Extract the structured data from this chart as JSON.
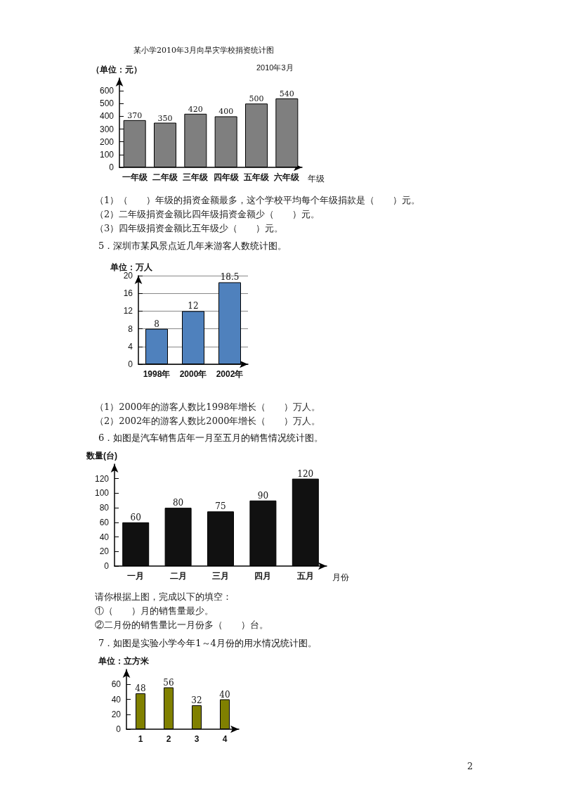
{
  "chart_data": [
    {
      "type": "bar",
      "title": "某小学2010年3月向旱灾学校捐资统计图",
      "subtitle": "2010年3月",
      "ylabel": "（单位：元）",
      "xlabel": "年级",
      "categories": [
        "一年级",
        "二年级",
        "三年级",
        "四年级",
        "五年级",
        "六年级"
      ],
      "values": [
        370,
        350,
        420,
        400,
        500,
        540
      ],
      "color": "#7f7f7f",
      "ylim": [
        0,
        700
      ],
      "yticks": [
        0,
        100,
        200,
        300,
        400,
        500,
        600
      ],
      "grid": false,
      "data_labels": true,
      "annotations": [
        "（1）（　　）年级的捐资金额最多，这个学校平均每个年级捐款是（　　）元。",
        "（2）二年级捐资金额比四年级捐资金额少（　　）元。",
        "（3）四年级捐资金额比五年级少（　　）元。"
      ]
    },
    {
      "type": "bar",
      "title": "5．深圳市某风景点近几年来游客人数统计图。",
      "ylabel": "单位：万人",
      "categories": [
        "1998年",
        "2000年",
        "2002年"
      ],
      "values": [
        8,
        12,
        18.5
      ],
      "color": "#4f81bd",
      "ylim": [
        0,
        20
      ],
      "yticks": [
        0,
        4,
        8,
        12,
        16,
        20
      ],
      "grid": "y",
      "data_labels": true,
      "annotations": [
        "（1）2000年的游客人数比1998年增长（　　）万人。",
        "（2）2002年的游客人数比2000年增长（　　）万人。"
      ]
    },
    {
      "type": "bar",
      "title": "6．如图是汽车销售店年一月至五月的销售情况统计图。",
      "ylabel": "数量(台)",
      "xlabel": "月份",
      "categories": [
        "一月",
        "二月",
        "三月",
        "四月",
        "五月"
      ],
      "values": [
        60,
        80,
        75,
        90,
        120
      ],
      "color": "#111111",
      "ylim": [
        0,
        140
      ],
      "yticks": [
        0,
        20,
        40,
        60,
        80,
        100,
        120
      ],
      "grid": false,
      "data_labels": true,
      "annotations": [
        "请你根据上图，完成以下的填空：",
        "①（　　）月的销售量最少。",
        "②二月份的销售量比一月份多（　　）台。"
      ]
    },
    {
      "type": "bar",
      "title": "7．如图是实验小学今年1～4月份的用水情况统计图。",
      "ylabel": "单位：立方米",
      "categories": [
        "1",
        "2",
        "3",
        "4"
      ],
      "values": [
        48,
        56,
        32,
        40
      ],
      "color": "#808000",
      "ylim": [
        0,
        80
      ],
      "yticks": [
        0,
        20,
        40,
        60
      ],
      "grid": false,
      "data_labels": true,
      "annotations": [
        "2"
      ]
    }
  ]
}
